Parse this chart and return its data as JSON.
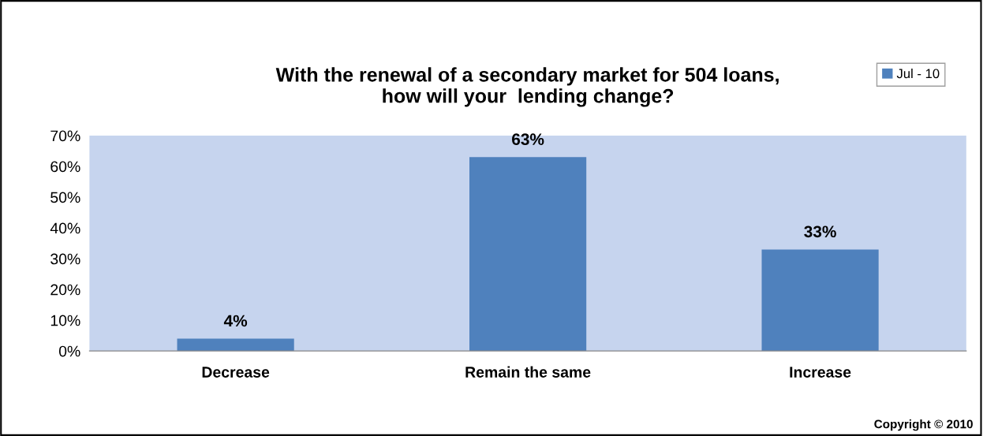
{
  "chart_data": {
    "type": "bar",
    "title": "With the renewal of a secondary market for 504 loans,\nhow will your  lending change?",
    "categories": [
      "Decrease",
      "Remain the same",
      "Increase"
    ],
    "series": [
      {
        "name": "Jul - 10",
        "color": "#4f81bd",
        "values": [
          4,
          63,
          33
        ],
        "value_labels": [
          "4%",
          "63%",
          "33%"
        ]
      }
    ],
    "ylim": [
      0,
      70
    ],
    "yticks": [
      {
        "value": 0,
        "label": "0%"
      },
      {
        "value": 10,
        "label": "10%"
      },
      {
        "value": 20,
        "label": "20%"
      },
      {
        "value": 30,
        "label": "30%"
      },
      {
        "value": 40,
        "label": "40%"
      },
      {
        "value": 50,
        "label": "50%"
      },
      {
        "value": 60,
        "label": "60%"
      },
      {
        "value": 70,
        "label": "70%"
      }
    ],
    "grid": false,
    "legend": "top right",
    "annotations": [
      "Copyright © 2010"
    ]
  }
}
